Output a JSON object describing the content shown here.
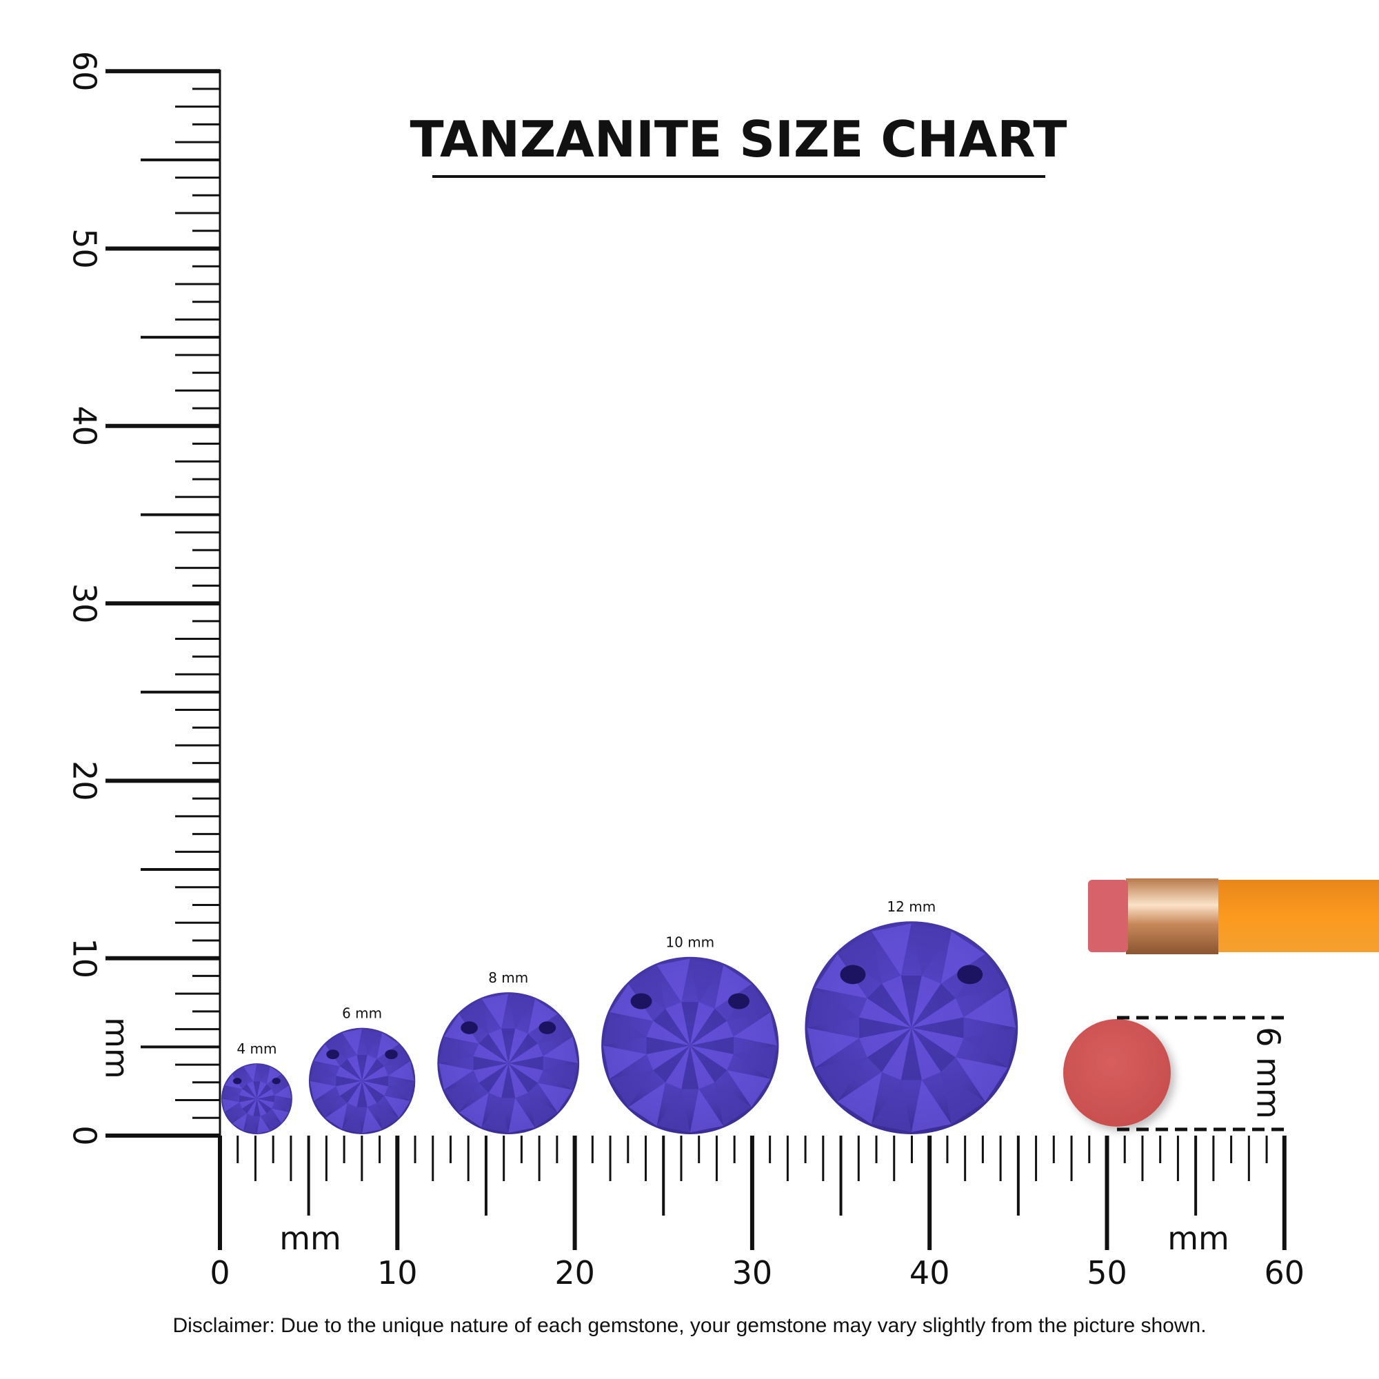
{
  "title": "TANZANITE SIZE CHART",
  "ruler": {
    "unit_label": "mm",
    "range_mm": [
      0,
      60
    ],
    "major_labels": [
      "0",
      "10",
      "20",
      "30",
      "40",
      "50",
      "60"
    ]
  },
  "gems": [
    {
      "label": "4 mm",
      "size_mm": 4
    },
    {
      "label": "6 mm",
      "size_mm": 6
    },
    {
      "label": "8 mm",
      "size_mm": 8
    },
    {
      "label": "10 mm",
      "size_mm": 10
    },
    {
      "label": "12 mm",
      "size_mm": 12
    }
  ],
  "eraser_reference": {
    "label": "6 mm",
    "size_mm": 6
  },
  "disclaimer": "Disclaimer: Due to the unique nature of each gemstone, your gemstone may vary slightly from the picture shown.",
  "colors": {
    "gem": "#4b3cb3",
    "gem_light": "#6a55e0",
    "gem_dark": "#1c1460",
    "eraser": "#d45a5a",
    "pencil_body": "#f7941d",
    "ferrule": "#d9a070"
  }
}
